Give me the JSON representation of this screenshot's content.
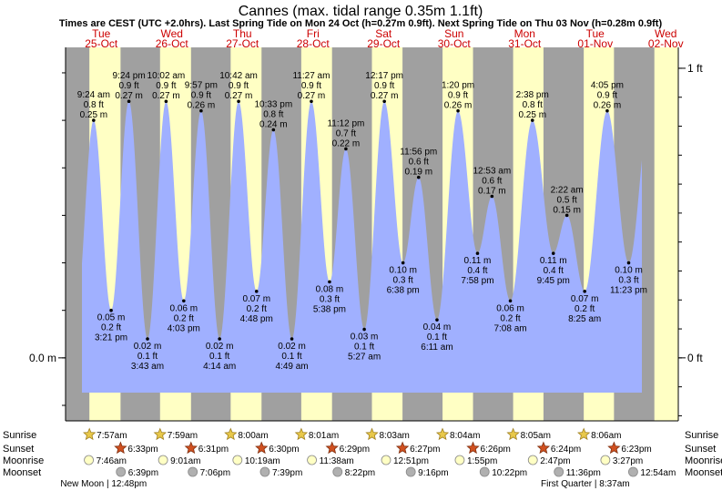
{
  "page": {
    "title": "Cannes (max. tidal range 0.35m 1.1ft)",
    "subtitle": "Times are CEST (UTC +2.0hrs). Last Spring Tide on Mon 24 Oct (h=0.27m 0.9ft). Next Spring Tide on Thu 03 Nov (h=0.28m 0.9ft)"
  },
  "colors": {
    "night": "#a0a0a0",
    "day": "#ffffc4",
    "water": "#a0b0ff",
    "day_label": "#cc0000",
    "sun_icon": "#e8c84a",
    "sunset_icon": "#d05020",
    "moon_icon": "#ffffc4",
    "moonset_icon": "#b0b0b0"
  },
  "chart_data": {
    "type": "area",
    "title": "Cannes (max. tidal range 0.35m 1.1ft)",
    "xlabel": "",
    "ylabel": "",
    "y_unit": "m",
    "ylim": [
      -0.0663,
      0.3268
    ],
    "days": [
      {
        "weekday": "Tue",
        "date": "25-Oct"
      },
      {
        "weekday": "Wed",
        "date": "26-Oct"
      },
      {
        "weekday": "Thu",
        "date": "27-Oct"
      },
      {
        "weekday": "Fri",
        "date": "28-Oct"
      },
      {
        "weekday": "Sat",
        "date": "29-Oct"
      },
      {
        "weekday": "Sun",
        "date": "30-Oct"
      },
      {
        "weekday": "Mon",
        "date": "31-Oct"
      },
      {
        "weekday": "Tue",
        "date": "01-Nov"
      },
      {
        "weekday": "Wed",
        "date": "02-Nov"
      }
    ],
    "left_axis": [
      {
        "label": "0.0 m",
        "value": 0.0
      }
    ],
    "right_axis": [
      {
        "label": "0 ft",
        "value": 0.0
      },
      {
        "label": "1 ft",
        "value": 0.3048
      }
    ],
    "daylight": [
      {
        "day": 0,
        "rise": 7.95,
        "set": 18.55
      },
      {
        "day": 1,
        "rise": 7.983,
        "set": 18.517
      },
      {
        "day": 2,
        "rise": 8.0,
        "set": 18.5
      },
      {
        "day": 3,
        "rise": 8.017,
        "set": 18.483
      },
      {
        "day": 4,
        "rise": 8.05,
        "set": 18.45
      },
      {
        "day": 5,
        "rise": 8.067,
        "set": 18.433
      },
      {
        "day": 6,
        "rise": 8.083,
        "set": 18.4
      },
      {
        "day": 7,
        "rise": 8.1,
        "set": 18.383
      },
      {
        "day": 8,
        "rise": 8.117,
        "set": 24.0
      }
    ],
    "tides": [
      {
        "day": 0,
        "hour": 9.4,
        "m": 0.25,
        "time": "9:24 am",
        "ft": "0.8 ft",
        "mlabel": "0.25 m",
        "type": "high"
      },
      {
        "day": 0,
        "hour": 15.35,
        "m": 0.05,
        "time": "3:21 pm",
        "ft": "0.2 ft",
        "mlabel": "0.05 m",
        "type": "low"
      },
      {
        "day": 0,
        "hour": 21.4,
        "m": 0.27,
        "time": "9:24 pm",
        "ft": "0.9 ft",
        "mlabel": "0.27 m",
        "type": "high"
      },
      {
        "day": 1,
        "hour": 3.717,
        "m": 0.02,
        "time": "3:43 am",
        "ft": "0.1 ft",
        "mlabel": "0.02 m",
        "type": "low"
      },
      {
        "day": 1,
        "hour": 10.033,
        "m": 0.27,
        "time": "10:02 am",
        "ft": "0.9 ft",
        "mlabel": "0.27 m",
        "type": "high"
      },
      {
        "day": 1,
        "hour": 16.05,
        "m": 0.06,
        "time": "4:03 pm",
        "ft": "0.2 ft",
        "mlabel": "0.06 m",
        "type": "low"
      },
      {
        "day": 1,
        "hour": 21.95,
        "m": 0.26,
        "time": "9:57 pm",
        "ft": "0.9 ft",
        "mlabel": "0.26 m",
        "type": "high"
      },
      {
        "day": 2,
        "hour": 4.233,
        "m": 0.02,
        "time": "4:14 am",
        "ft": "0.1 ft",
        "mlabel": "0.02 m",
        "type": "low"
      },
      {
        "day": 2,
        "hour": 10.7,
        "m": 0.27,
        "time": "10:42 am",
        "ft": "0.9 ft",
        "mlabel": "0.27 m",
        "type": "high"
      },
      {
        "day": 2,
        "hour": 16.8,
        "m": 0.07,
        "time": "4:48 pm",
        "ft": "0.2 ft",
        "mlabel": "0.07 m",
        "type": "low"
      },
      {
        "day": 2,
        "hour": 22.55,
        "m": 0.24,
        "time": "10:33 pm",
        "ft": "0.8 ft",
        "mlabel": "0.24 m",
        "type": "high"
      },
      {
        "day": 3,
        "hour": 4.817,
        "m": 0.02,
        "time": "4:49 am",
        "ft": "0.1 ft",
        "mlabel": "0.02 m",
        "type": "low"
      },
      {
        "day": 3,
        "hour": 11.45,
        "m": 0.27,
        "time": "11:27 am",
        "ft": "0.9 ft",
        "mlabel": "0.27 m",
        "type": "high"
      },
      {
        "day": 3,
        "hour": 17.633,
        "m": 0.08,
        "time": "5:38 pm",
        "ft": "0.3 ft",
        "mlabel": "0.08 m",
        "type": "low"
      },
      {
        "day": 3,
        "hour": 23.2,
        "m": 0.22,
        "time": "11:12 pm",
        "ft": "0.7 ft",
        "mlabel": "0.22 m",
        "type": "high"
      },
      {
        "day": 4,
        "hour": 5.45,
        "m": 0.03,
        "time": "5:27 am",
        "ft": "0.1 ft",
        "mlabel": "0.03 m",
        "type": "low"
      },
      {
        "day": 4,
        "hour": 12.283,
        "m": 0.27,
        "time": "12:17 pm",
        "ft": "0.9 ft",
        "mlabel": "0.27 m",
        "type": "high"
      },
      {
        "day": 4,
        "hour": 18.633,
        "m": 0.1,
        "time": "6:38 pm",
        "ft": "0.3 ft",
        "mlabel": "0.10 m",
        "type": "low"
      },
      {
        "day": 4,
        "hour": 23.933,
        "m": 0.19,
        "time": "11:56 pm",
        "ft": "0.6 ft",
        "mlabel": "0.19 m",
        "type": "high"
      },
      {
        "day": 5,
        "hour": 6.183,
        "m": 0.04,
        "time": "6:11 am",
        "ft": "0.1 ft",
        "mlabel": "0.04 m",
        "type": "low"
      },
      {
        "day": 5,
        "hour": 13.333,
        "m": 0.26,
        "time": "1:20 pm",
        "ft": "0.9 ft",
        "mlabel": "0.26 m",
        "type": "high"
      },
      {
        "day": 5,
        "hour": 19.967,
        "m": 0.11,
        "time": "7:58 pm",
        "ft": "0.4 ft",
        "mlabel": "0.11 m",
        "type": "low"
      },
      {
        "day": 6,
        "hour": 0.883,
        "m": 0.17,
        "time": "12:53 am",
        "ft": "0.6 ft",
        "mlabel": "0.17 m",
        "type": "high"
      },
      {
        "day": 6,
        "hour": 7.133,
        "m": 0.06,
        "time": "7:08 am",
        "ft": "0.2 ft",
        "mlabel": "0.06 m",
        "type": "low"
      },
      {
        "day": 6,
        "hour": 14.633,
        "m": 0.25,
        "time": "2:38 pm",
        "ft": "0.8 ft",
        "mlabel": "0.25 m",
        "type": "high"
      },
      {
        "day": 6,
        "hour": 21.75,
        "m": 0.11,
        "time": "9:45 pm",
        "ft": "0.4 ft",
        "mlabel": "0.11 m",
        "type": "low"
      },
      {
        "day": 7,
        "hour": 2.367,
        "m": 0.15,
        "time": "2:22 am",
        "ft": "0.5 ft",
        "mlabel": "0.15 m",
        "type": "high"
      },
      {
        "day": 7,
        "hour": 8.417,
        "m": 0.07,
        "time": "8:25 am",
        "ft": "0.2 ft",
        "mlabel": "0.07 m",
        "type": "low"
      },
      {
        "day": 7,
        "hour": 16.083,
        "m": 0.26,
        "time": "4:05 pm",
        "ft": "0.9 ft",
        "mlabel": "0.26 m",
        "type": "high"
      },
      {
        "day": 7,
        "hour": 23.383,
        "m": 0.1,
        "time": "11:23 pm",
        "ft": "0.3 ft",
        "mlabel": "0.10 m",
        "type": "low"
      }
    ]
  },
  "astro": {
    "row_labels": [
      "Sunrise",
      "Sunset",
      "Moonrise",
      "Moonset"
    ],
    "events": [
      {
        "row": 0,
        "day": 0,
        "hour": 7.95,
        "time": "7:57am"
      },
      {
        "row": 0,
        "day": 1,
        "hour": 7.983,
        "time": "7:59am"
      },
      {
        "row": 0,
        "day": 2,
        "hour": 8.0,
        "time": "8:00am"
      },
      {
        "row": 0,
        "day": 3,
        "hour": 8.017,
        "time": "8:01am"
      },
      {
        "row": 0,
        "day": 4,
        "hour": 8.05,
        "time": "8:03am"
      },
      {
        "row": 0,
        "day": 5,
        "hour": 8.067,
        "time": "8:04am"
      },
      {
        "row": 0,
        "day": 6,
        "hour": 8.083,
        "time": "8:05am"
      },
      {
        "row": 0,
        "day": 7,
        "hour": 8.1,
        "time": "8:06am"
      },
      {
        "row": 1,
        "day": 0,
        "hour": 18.55,
        "time": "6:33pm"
      },
      {
        "row": 1,
        "day": 1,
        "hour": 18.517,
        "time": "6:31pm"
      },
      {
        "row": 1,
        "day": 2,
        "hour": 18.5,
        "time": "6:30pm"
      },
      {
        "row": 1,
        "day": 3,
        "hour": 18.483,
        "time": "6:29pm"
      },
      {
        "row": 1,
        "day": 4,
        "hour": 18.45,
        "time": "6:27pm"
      },
      {
        "row": 1,
        "day": 5,
        "hour": 18.433,
        "time": "6:26pm"
      },
      {
        "row": 1,
        "day": 6,
        "hour": 18.4,
        "time": "6:24pm"
      },
      {
        "row": 1,
        "day": 7,
        "hour": 18.383,
        "time": "6:23pm"
      },
      {
        "row": 2,
        "day": 0,
        "hour": 7.767,
        "time": "7:46am"
      },
      {
        "row": 2,
        "day": 1,
        "hour": 9.017,
        "time": "9:01am"
      },
      {
        "row": 2,
        "day": 2,
        "hour": 10.317,
        "time": "10:19am"
      },
      {
        "row": 2,
        "day": 3,
        "hour": 11.633,
        "time": "11:38am"
      },
      {
        "row": 2,
        "day": 4,
        "hour": 12.85,
        "time": "12:51pm"
      },
      {
        "row": 2,
        "day": 5,
        "hour": 13.917,
        "time": "1:55pm"
      },
      {
        "row": 2,
        "day": 6,
        "hour": 14.783,
        "time": "2:47pm"
      },
      {
        "row": 2,
        "day": 7,
        "hour": 15.45,
        "time": "3:27pm"
      },
      {
        "row": 3,
        "day": 0,
        "hour": 18.65,
        "time": "6:39pm"
      },
      {
        "row": 3,
        "day": 1,
        "hour": 19.1,
        "time": "7:06pm"
      },
      {
        "row": 3,
        "day": 2,
        "hour": 19.65,
        "time": "7:39pm"
      },
      {
        "row": 3,
        "day": 3,
        "hour": 20.367,
        "time": "8:22pm"
      },
      {
        "row": 3,
        "day": 4,
        "hour": 21.267,
        "time": "9:16pm"
      },
      {
        "row": 3,
        "day": 5,
        "hour": 22.367,
        "time": "10:22pm"
      },
      {
        "row": 3,
        "day": 6,
        "hour": 23.6,
        "time": "11:36pm"
      },
      {
        "row": 3,
        "day": 8,
        "hour": 0.9,
        "time": "12:54am"
      }
    ],
    "moon_phases": [
      {
        "label": "New Moon | 12:48pm",
        "day": 0,
        "hour": 12.8
      },
      {
        "label": "First Quarter | 8:37am",
        "day": 7,
        "hour": 8.617
      }
    ]
  }
}
